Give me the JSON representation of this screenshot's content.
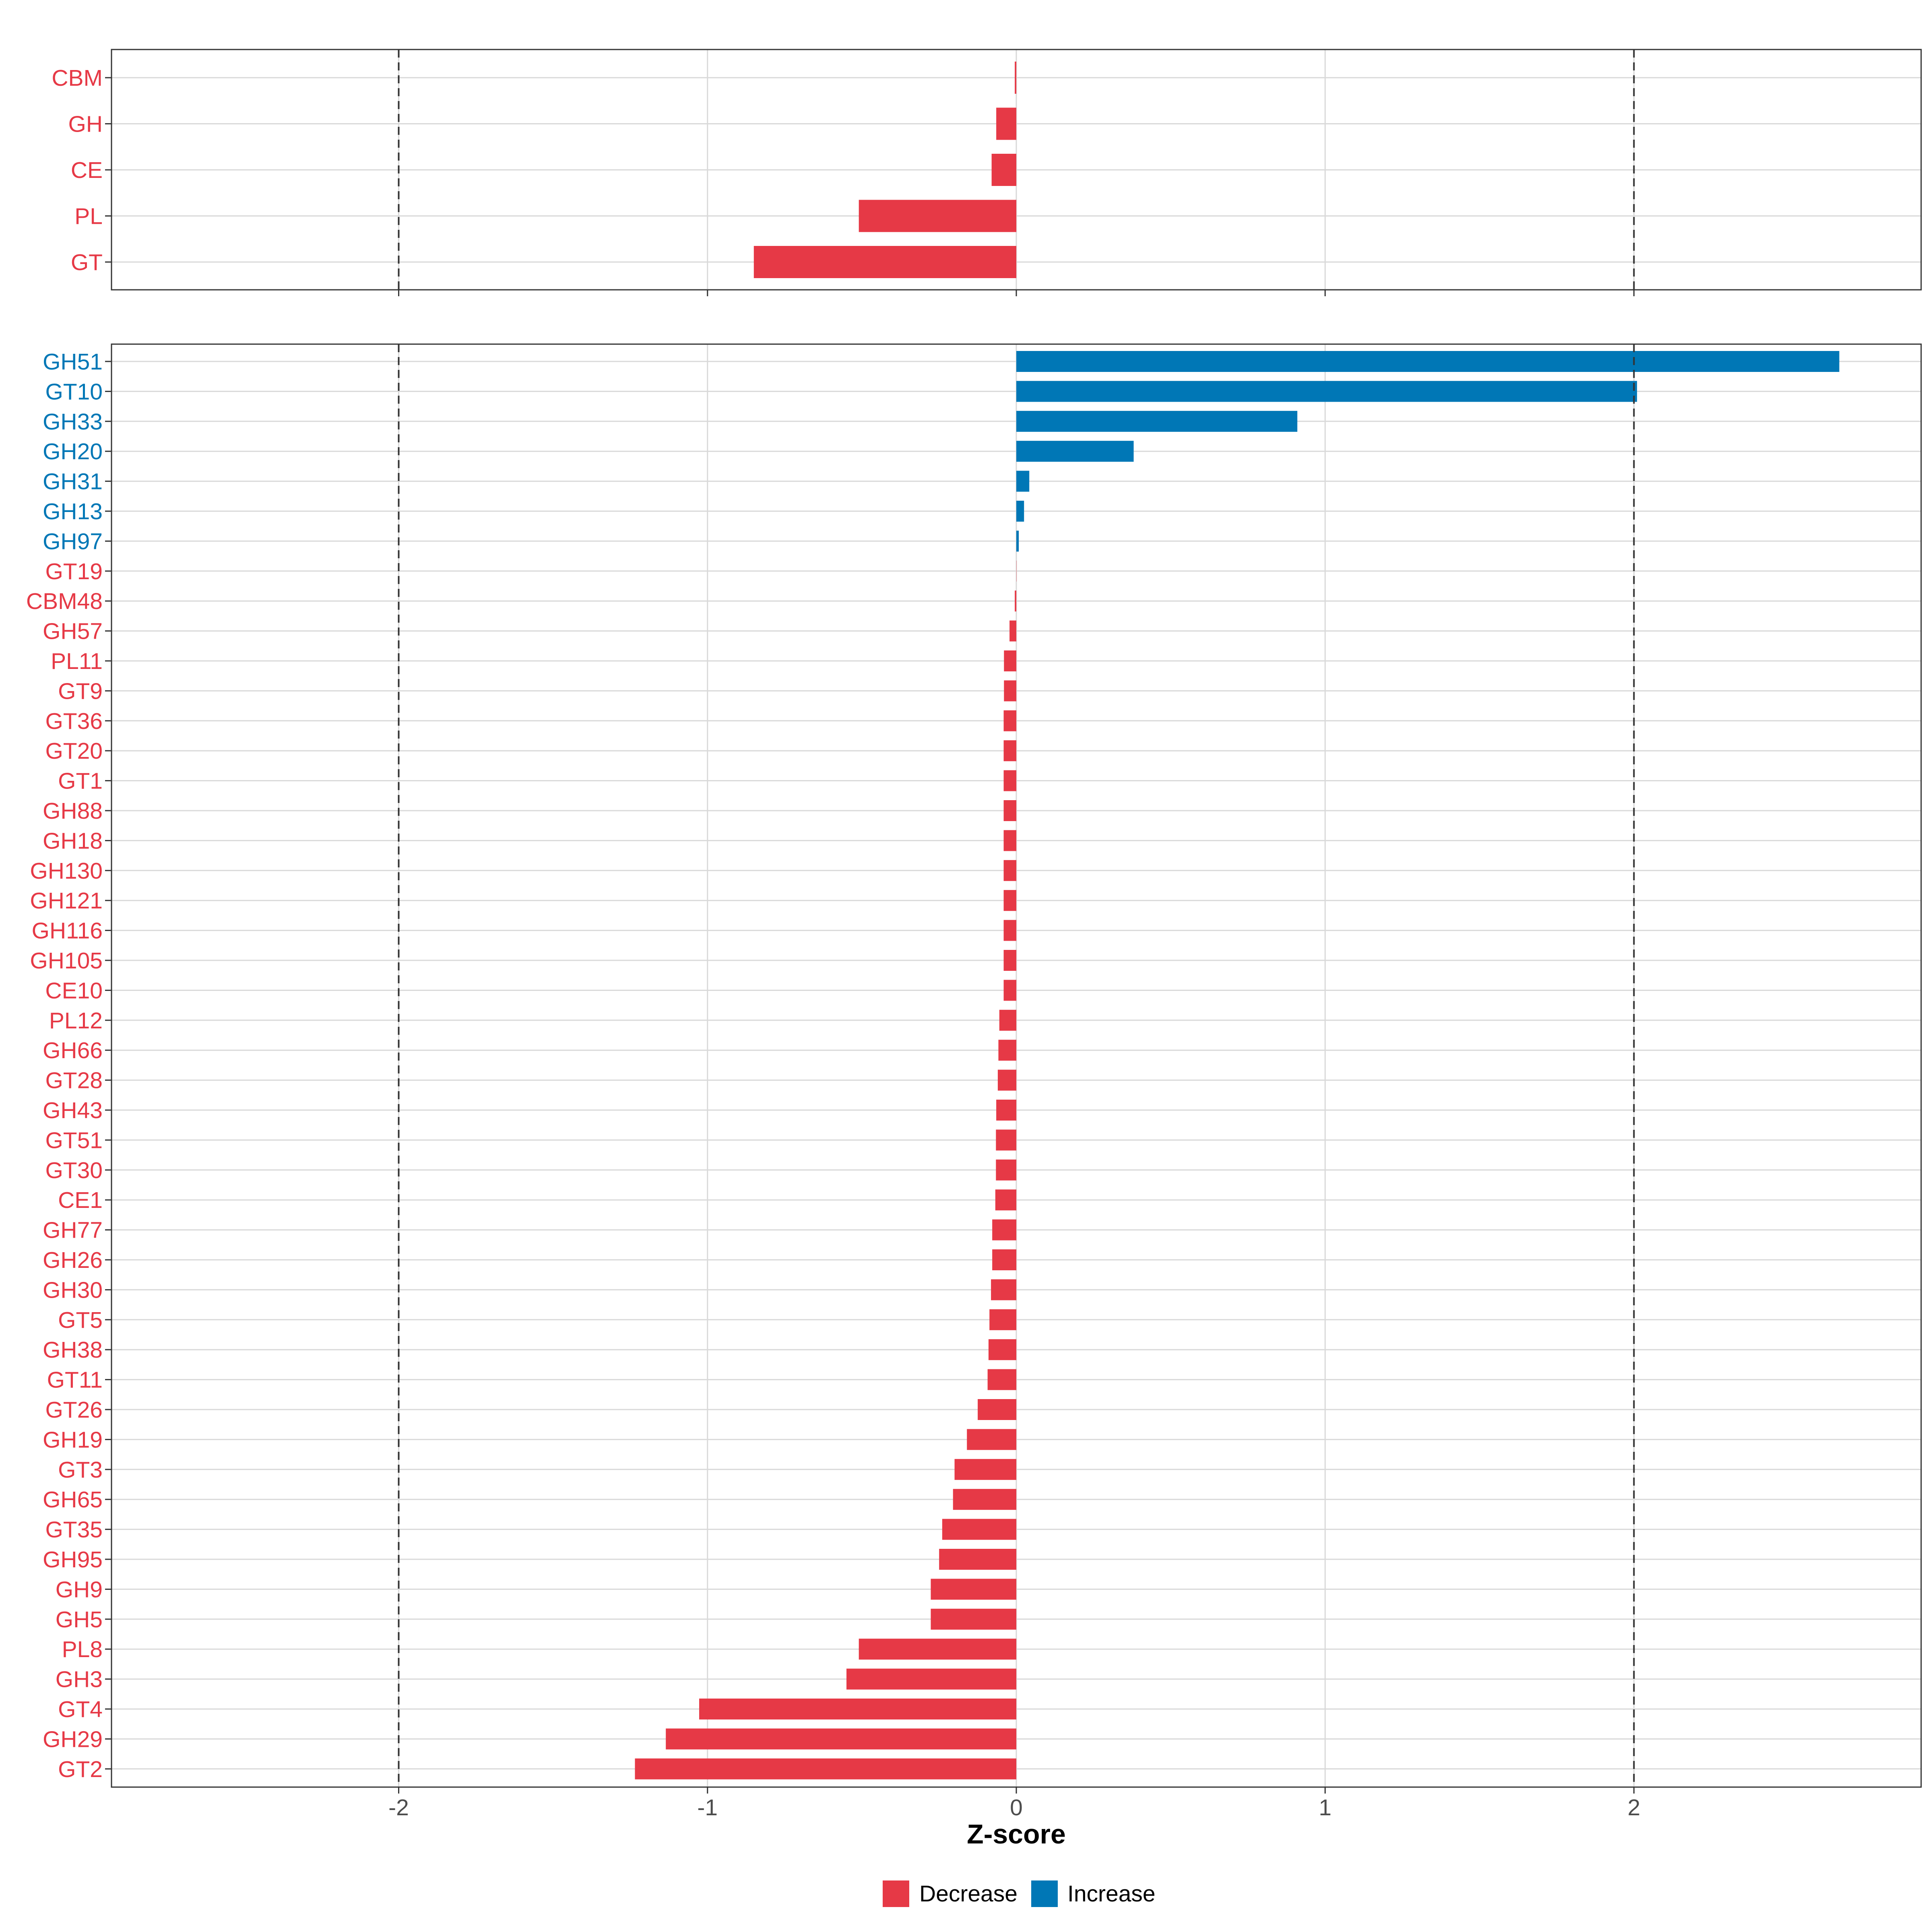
{
  "colors": {
    "decrease": "#E63946",
    "increase": "#0077B6",
    "grid": "#d9d9d9",
    "frame": "#333333",
    "refline": "#333333"
  },
  "legend": {
    "decrease_label": "Decrease",
    "increase_label": "Increase",
    "placement": "bottom"
  },
  "chart_data": [
    {
      "type": "bar",
      "orientation": "horizontal",
      "panel": "top",
      "categories": [
        "CBM",
        "GH",
        "CE",
        "PL",
        "GT"
      ],
      "values": [
        -0.005,
        -0.065,
        -0.08,
        -0.51,
        -0.85
      ],
      "direction": [
        "Decrease",
        "Decrease",
        "Decrease",
        "Decrease",
        "Decrease"
      ],
      "xlim": [
        -2.93,
        2.93
      ],
      "reference_lines": [
        -2,
        2
      ],
      "grid": true
    },
    {
      "type": "bar",
      "orientation": "horizontal",
      "panel": "bottom",
      "categories": [
        "GH51",
        "GT10",
        "GH33",
        "GH20",
        "GH31",
        "GH13",
        "GH97",
        "GT19",
        "CBM48",
        "GH57",
        "PL11",
        "GT9",
        "GT36",
        "GT20",
        "GT1",
        "GH88",
        "GH18",
        "GH130",
        "GH121",
        "GH116",
        "GH105",
        "CE10",
        "PL12",
        "GH66",
        "GT28",
        "GH43",
        "GT51",
        "GT30",
        "CE1",
        "GH77",
        "GH26",
        "GH30",
        "GT5",
        "GH38",
        "GT11",
        "GT26",
        "GH19",
        "GT3",
        "GH65",
        "GT35",
        "GH95",
        "GH9",
        "GH5",
        "PL8",
        "GH3",
        "GT4",
        "GH29",
        "GT2"
      ],
      "values": [
        2.665,
        2.01,
        0.91,
        0.38,
        0.042,
        0.025,
        0.008,
        0.0,
        -0.005,
        -0.022,
        -0.04,
        -0.04,
        -0.041,
        -0.041,
        -0.041,
        -0.041,
        -0.041,
        -0.041,
        -0.041,
        -0.041,
        -0.041,
        -0.041,
        -0.055,
        -0.058,
        -0.06,
        -0.065,
        -0.066,
        -0.066,
        -0.068,
        -0.078,
        -0.078,
        -0.082,
        -0.087,
        -0.09,
        -0.093,
        -0.125,
        -0.16,
        -0.2,
        -0.205,
        -0.24,
        -0.25,
        -0.277,
        -0.277,
        -0.51,
        -0.55,
        -1.027,
        -1.135,
        -1.235
      ],
      "direction": [
        "Increase",
        "Increase",
        "Increase",
        "Increase",
        "Increase",
        "Increase",
        "Increase",
        "Decrease",
        "Decrease",
        "Decrease",
        "Decrease",
        "Decrease",
        "Decrease",
        "Decrease",
        "Decrease",
        "Decrease",
        "Decrease",
        "Decrease",
        "Decrease",
        "Decrease",
        "Decrease",
        "Decrease",
        "Decrease",
        "Decrease",
        "Decrease",
        "Decrease",
        "Decrease",
        "Decrease",
        "Decrease",
        "Decrease",
        "Decrease",
        "Decrease",
        "Decrease",
        "Decrease",
        "Decrease",
        "Decrease",
        "Decrease",
        "Decrease",
        "Decrease",
        "Decrease",
        "Decrease",
        "Decrease",
        "Decrease",
        "Decrease",
        "Decrease",
        "Decrease",
        "Decrease",
        "Decrease"
      ],
      "xlim": [
        -2.93,
        2.93
      ],
      "xticks": [
        -2,
        -1,
        0,
        1,
        2
      ],
      "xtick_labels": [
        "-2",
        "-1",
        "0",
        "1",
        "2"
      ],
      "xlabel": "Z-score",
      "reference_lines": [
        -2,
        2
      ],
      "grid": true
    }
  ]
}
